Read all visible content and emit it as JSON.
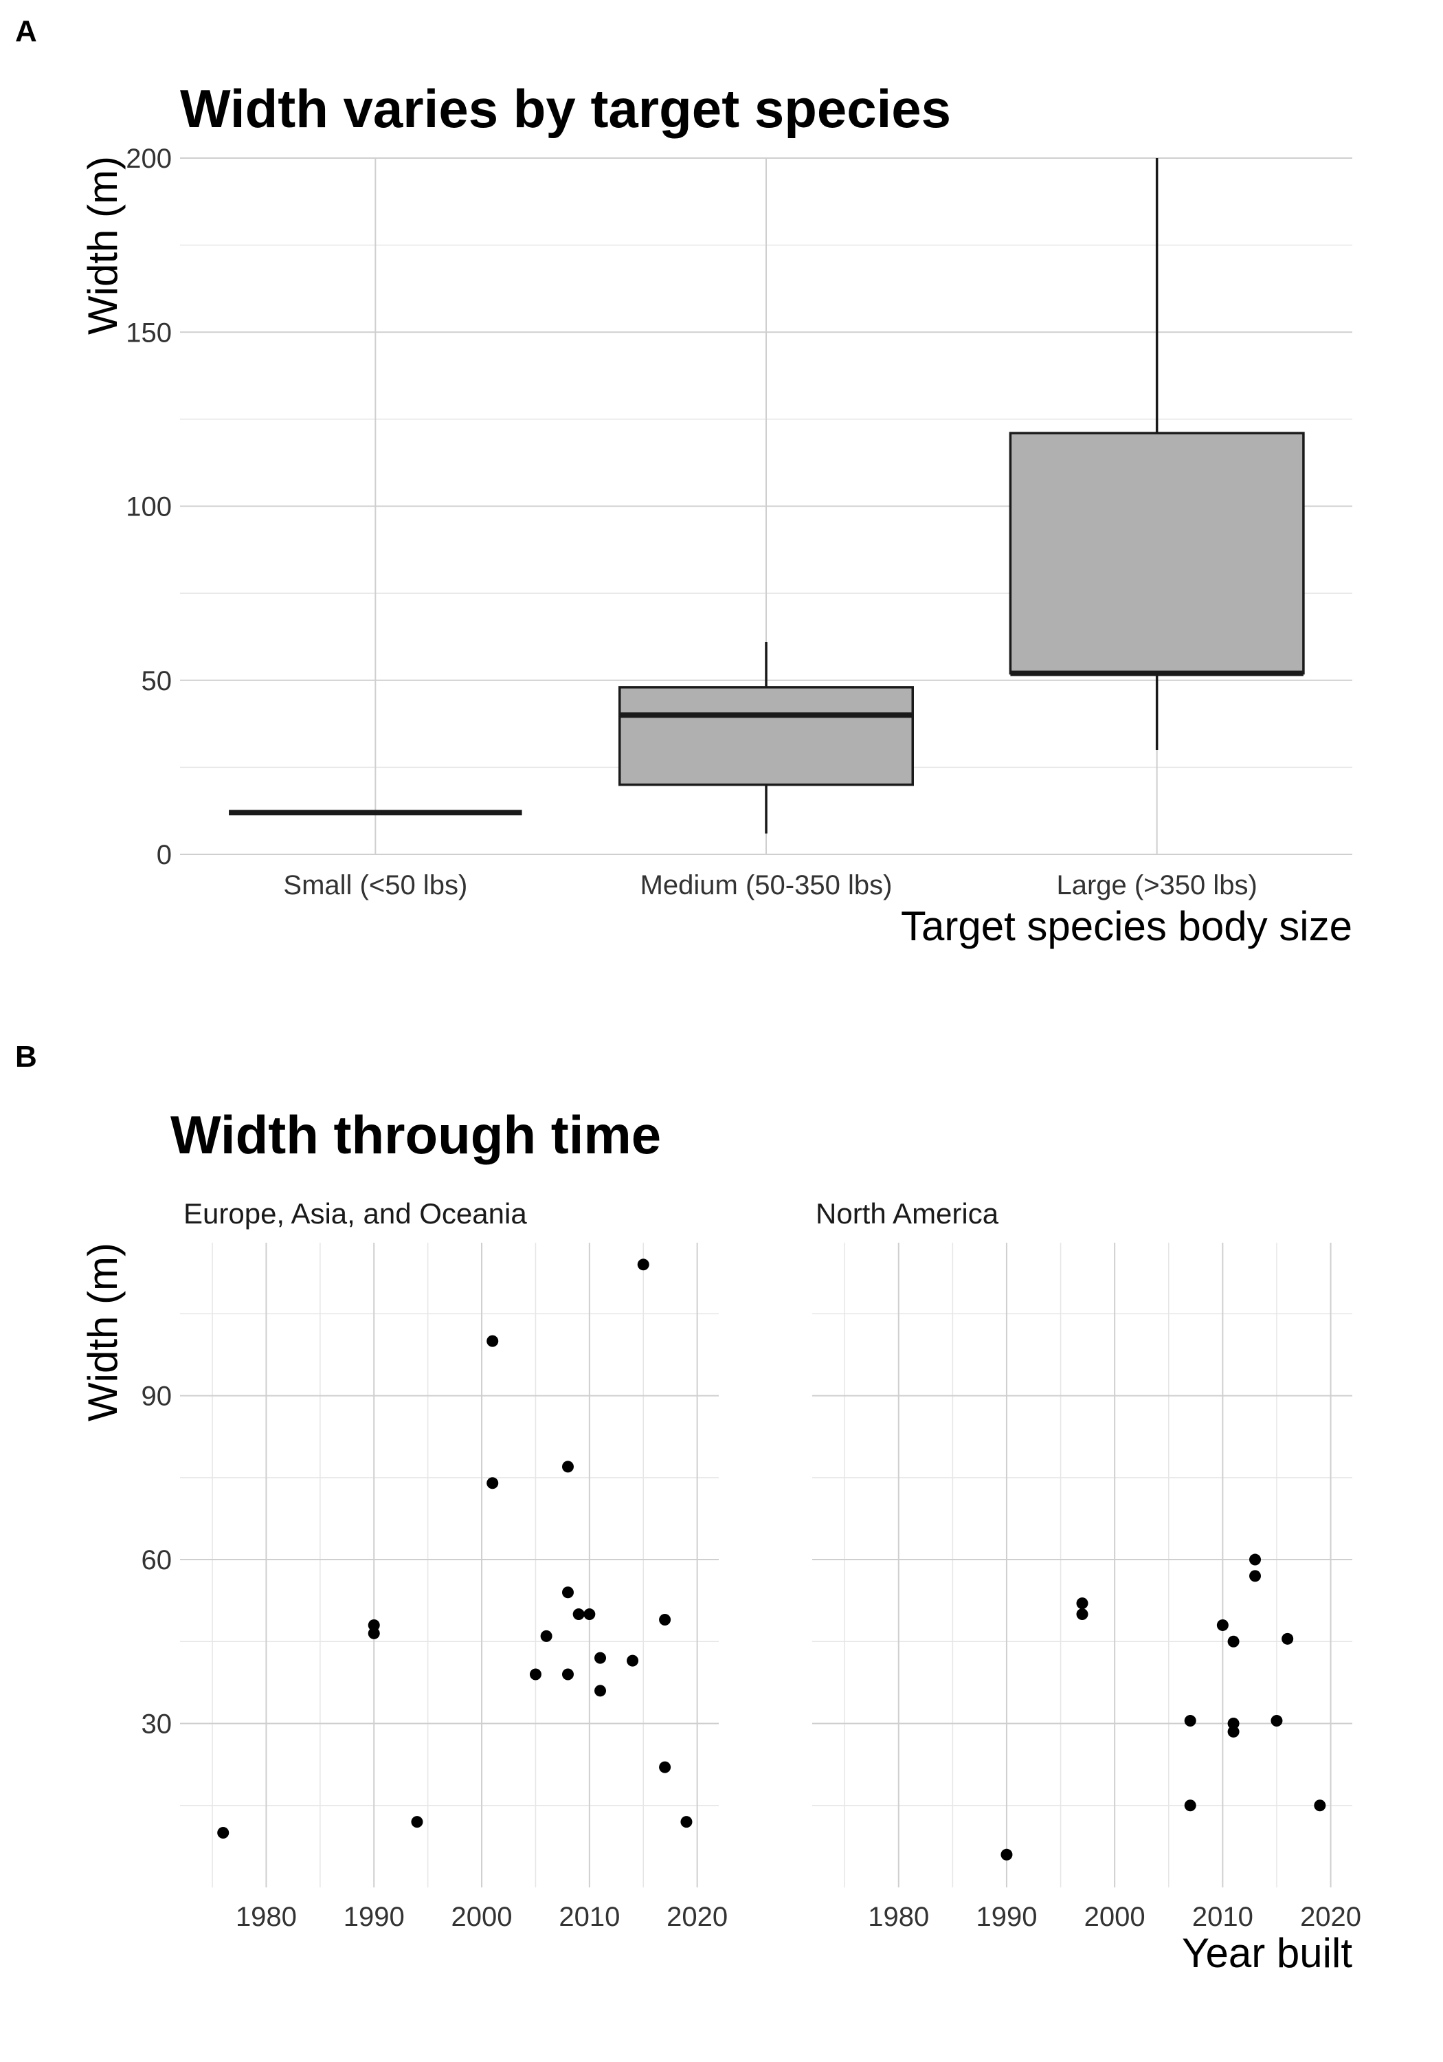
{
  "colors": {
    "box_fill": "#b0b0b0",
    "box_line": "#1a1a1a",
    "point": "#000000",
    "grid_major": "#cfcfcf",
    "grid_minor": "#e6e6e6"
  },
  "chart_data": [
    {
      "panel_label": "A",
      "type": "boxplot",
      "title": "Width varies by target species",
      "xlabel": "Target species body size",
      "ylabel": "Width (m)",
      "ylim": [
        0,
        200
      ],
      "yticks": [
        0,
        50,
        100,
        150,
        200
      ],
      "grid": true,
      "categories": [
        "Small (<50 lbs)",
        "Medium (50-350 lbs)",
        "Large (>350 lbs)"
      ],
      "boxes": [
        {
          "category": "Small (<50 lbs)",
          "min": 12,
          "q1": 12,
          "median": 12,
          "q3": 12,
          "max": 12
        },
        {
          "category": "Medium (50-350 lbs)",
          "min": 6,
          "q1": 20,
          "median": 40,
          "q3": 48,
          "max": 61
        },
        {
          "category": "Large (>350 lbs)",
          "min": 30,
          "q1": 52,
          "median": 52,
          "q3": 121,
          "max": 200
        }
      ]
    },
    {
      "panel_label": "B",
      "type": "scatter",
      "title": "Width through time",
      "xlabel": "Year built",
      "ylabel": "Width (m)",
      "xlim": [
        1972,
        2022
      ],
      "ylim": [
        0,
        118
      ],
      "xticks": [
        1980,
        1990,
        2000,
        2010,
        2020
      ],
      "yticks": [
        30,
        60,
        90
      ],
      "grid": true,
      "facets": [
        {
          "name": "Europe, Asia, and Oceania",
          "points": [
            {
              "x": 1976,
              "y": 10
            },
            {
              "x": 1990,
              "y": 48
            },
            {
              "x": 1990,
              "y": 46.5
            },
            {
              "x": 1994,
              "y": 12
            },
            {
              "x": 2001,
              "y": 100
            },
            {
              "x": 2001,
              "y": 74
            },
            {
              "x": 2005,
              "y": 39
            },
            {
              "x": 2006,
              "y": 46
            },
            {
              "x": 2008,
              "y": 77
            },
            {
              "x": 2008,
              "y": 54
            },
            {
              "x": 2008,
              "y": 39
            },
            {
              "x": 2009,
              "y": 50
            },
            {
              "x": 2010,
              "y": 50
            },
            {
              "x": 2011,
              "y": 42
            },
            {
              "x": 2011,
              "y": 36
            },
            {
              "x": 2014,
              "y": 41.5
            },
            {
              "x": 2015,
              "y": 114
            },
            {
              "x": 2017,
              "y": 49
            },
            {
              "x": 2017,
              "y": 22
            },
            {
              "x": 2019,
              "y": 12
            }
          ]
        },
        {
          "name": "North America",
          "points": [
            {
              "x": 1990,
              "y": 6
            },
            {
              "x": 1997,
              "y": 52
            },
            {
              "x": 1997,
              "y": 50
            },
            {
              "x": 2007,
              "y": 30.5
            },
            {
              "x": 2007,
              "y": 15
            },
            {
              "x": 2010,
              "y": 48
            },
            {
              "x": 2011,
              "y": 45
            },
            {
              "x": 2011,
              "y": 30
            },
            {
              "x": 2011,
              "y": 28.5
            },
            {
              "x": 2013,
              "y": 60
            },
            {
              "x": 2013,
              "y": 57
            },
            {
              "x": 2015,
              "y": 30.5
            },
            {
              "x": 2016,
              "y": 45.5
            },
            {
              "x": 2019,
              "y": 15
            }
          ]
        }
      ]
    }
  ]
}
